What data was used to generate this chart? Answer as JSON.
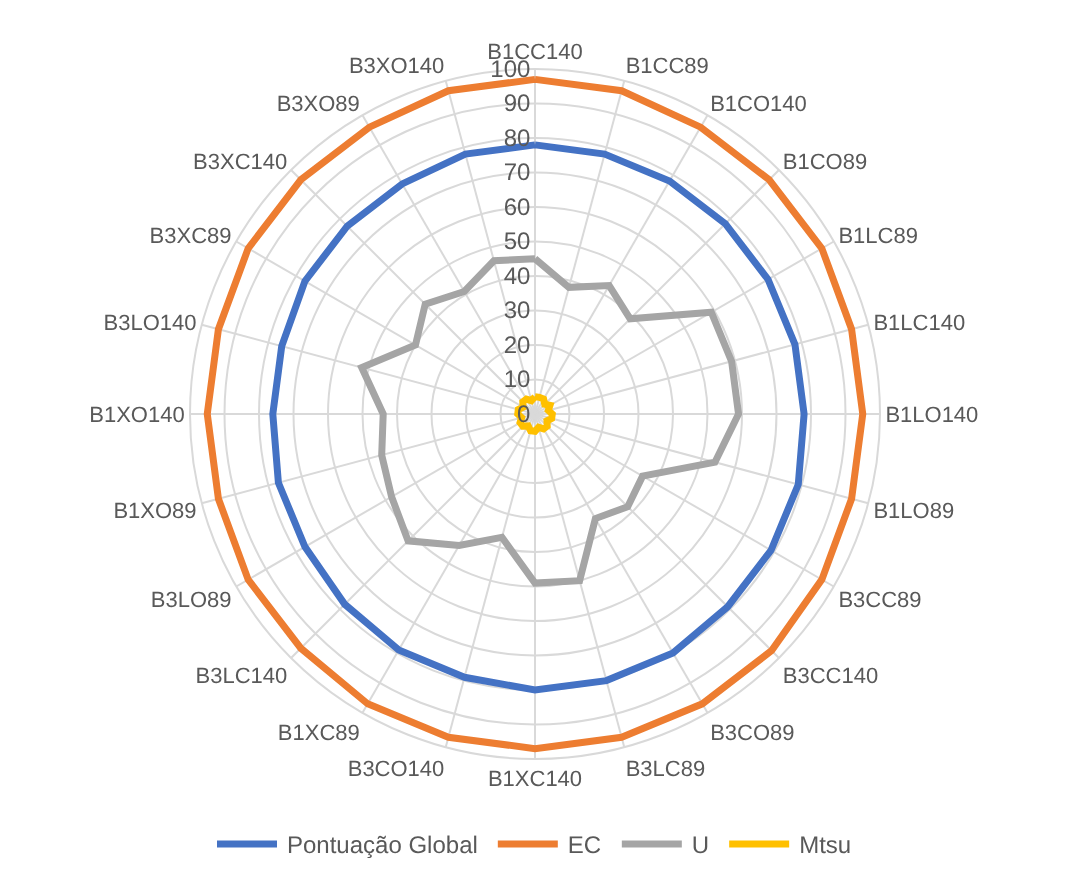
{
  "chart_data": {
    "type": "radar",
    "categories": [
      "B1CC140",
      "B1CC89",
      "B1CO140",
      "B1CO89",
      "B1LC89",
      "B1LC140",
      "B1LO140",
      "B1LO89",
      "B3CC89",
      "B3CC140",
      "B3CO89",
      "B3LC89",
      "B1XC140",
      "B3CO140",
      "B1XC89",
      "B3LC140",
      "B3LO89",
      "B1XO89",
      "B1XO140",
      "B3LO140",
      "B3XC89",
      "B3XC140",
      "B3XO89",
      "B3XO140"
    ],
    "series": [
      {
        "name": "Pontuação Global",
        "color": "#4472c4",
        "values": [
          78,
          78,
          78,
          78,
          78,
          78,
          78,
          79,
          79,
          79,
          80,
          80,
          80,
          79,
          79,
          78,
          77,
          77,
          76,
          76,
          77,
          77,
          77,
          78
        ]
      },
      {
        "name": "EC",
        "color": "#ed7d31",
        "values": [
          97,
          97,
          96,
          96,
          96,
          95,
          95,
          95,
          96,
          97,
          97,
          97,
          97,
          97,
          97,
          96,
          96,
          95,
          95,
          95,
          96,
          96,
          96,
          97
        ]
      },
      {
        "name": "U",
        "color": "#a5a5a5",
        "values": [
          45,
          38,
          43,
          39,
          59,
          59,
          59,
          54,
          36,
          38,
          35,
          50,
          49,
          37,
          44,
          52,
          48,
          46,
          44,
          52,
          40,
          45,
          41,
          46
        ]
      },
      {
        "name": "Mtsu",
        "color": "#ffc000",
        "values": [
          5,
          5,
          5,
          4,
          5,
          4,
          5,
          5,
          4,
          5,
          5,
          4,
          5,
          5,
          4,
          5,
          5,
          4,
          5,
          5,
          4,
          5,
          5,
          4
        ]
      }
    ],
    "ylim": [
      0,
      100
    ],
    "yticks": [
      0,
      10,
      20,
      30,
      40,
      50,
      60,
      70,
      80,
      90,
      100
    ],
    "grid": true,
    "legend": "bottom",
    "marker": "none",
    "line_style": "solid"
  }
}
